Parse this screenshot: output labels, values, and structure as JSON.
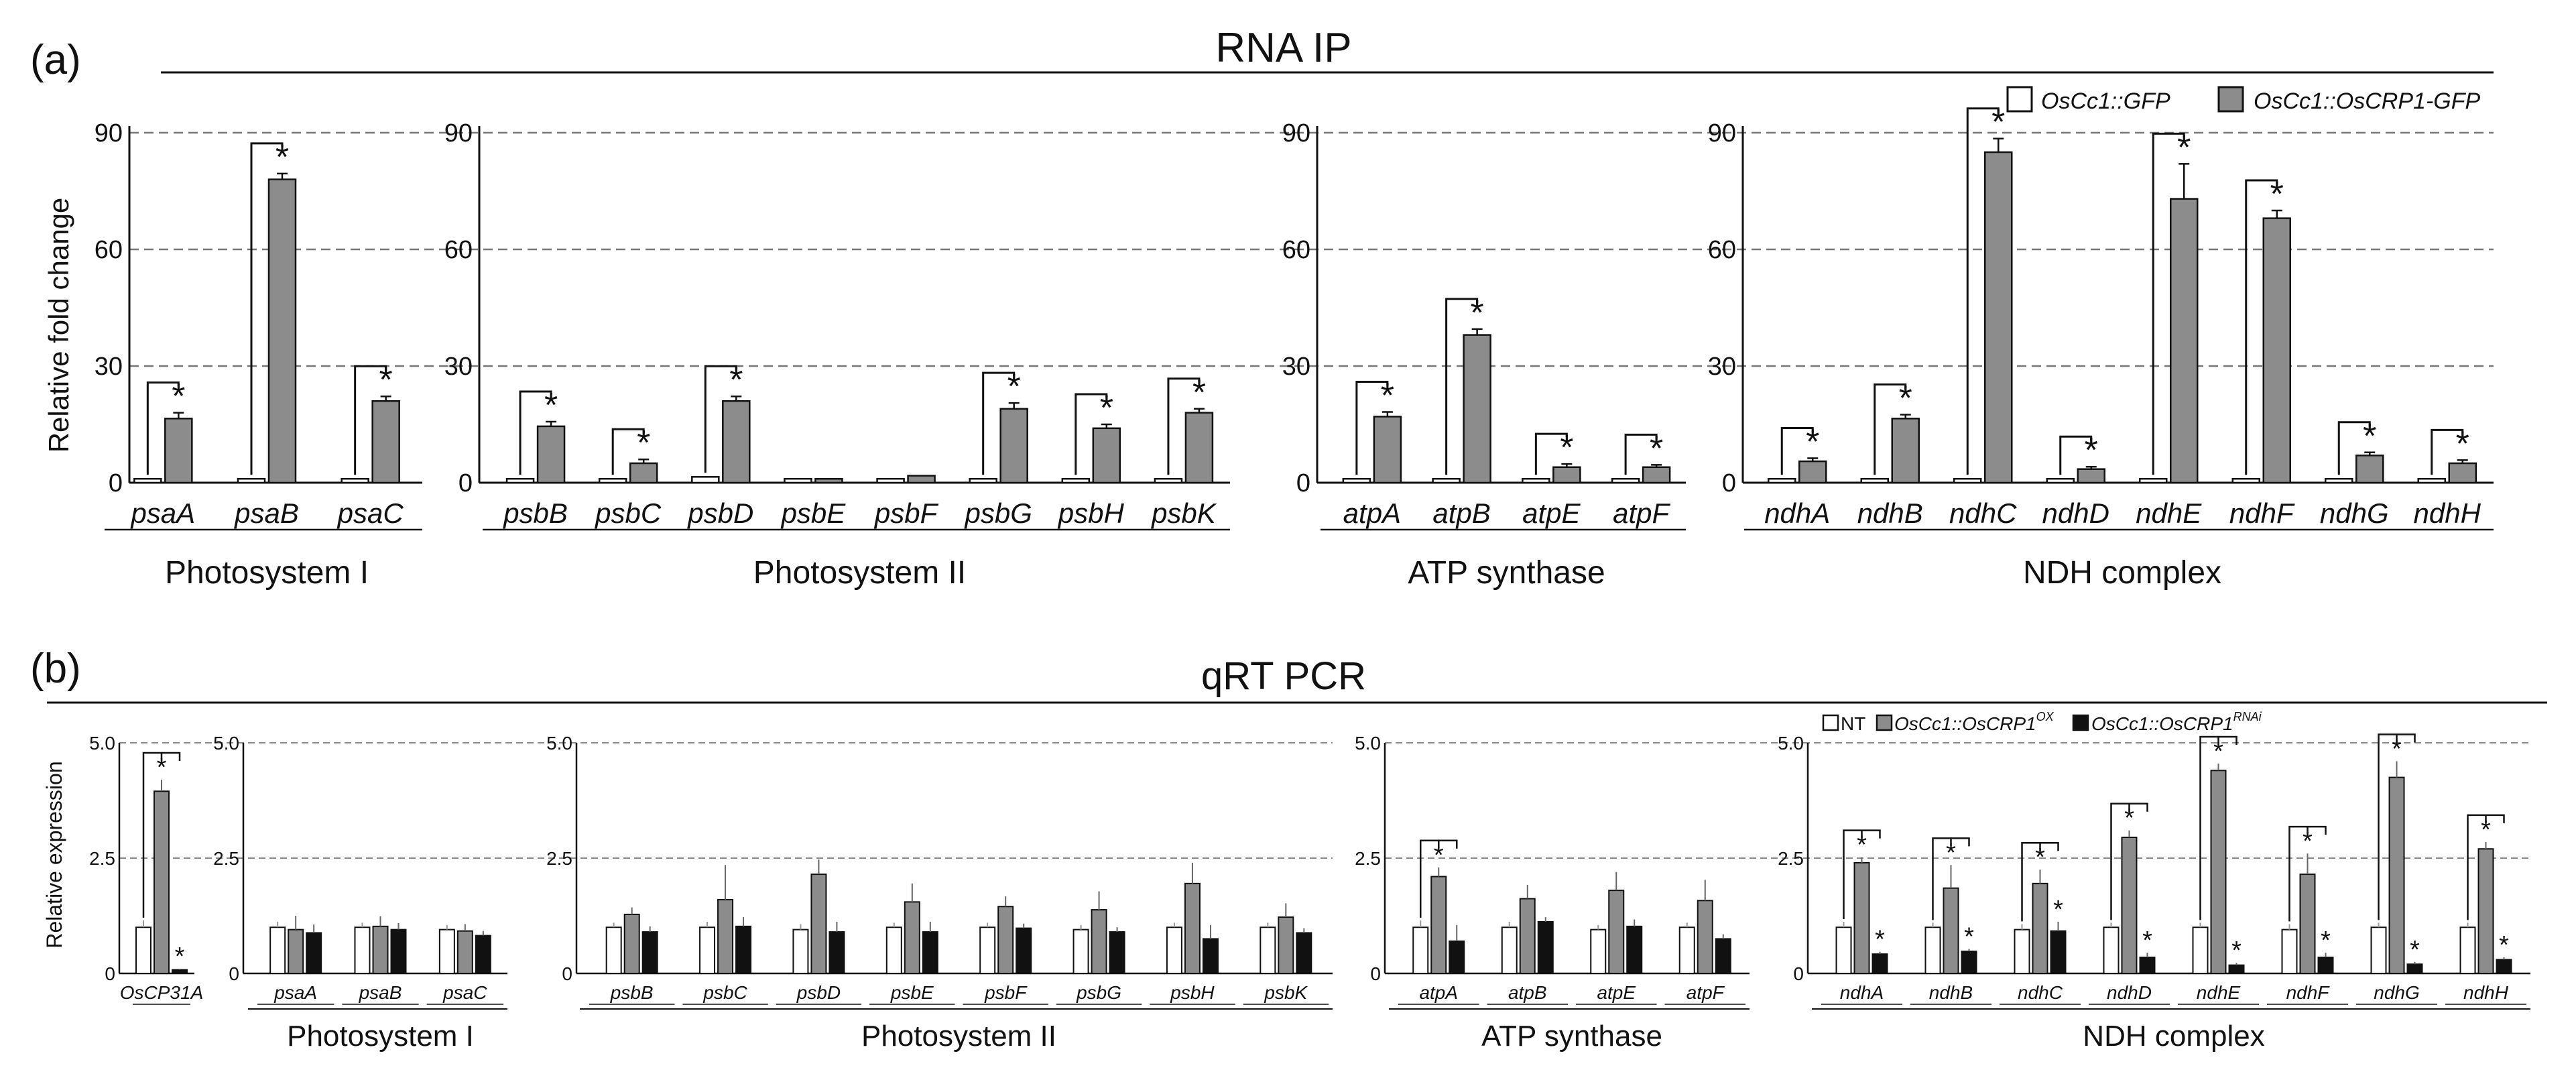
{
  "panel_a": {
    "label": "(a)",
    "title": "RNA IP",
    "ylabel": "Relative fold change",
    "legend": [
      "OsCc1::GFP",
      "OsCc1::OsCRP1-GFP"
    ],
    "star": "*"
  },
  "panel_b": {
    "label": "(b)",
    "title": "qRT PCR",
    "ylabel": "Relative expression",
    "legend": [
      {
        "prefix": "NT",
        "sup": ""
      },
      {
        "prefix": "OsCc1::OsCRP1",
        "sup": "OX"
      },
      {
        "prefix": "OsCc1::OsCRP1",
        "sup": "RNAi"
      }
    ],
    "star": "*"
  },
  "chart_data": [
    {
      "type": "bar",
      "title": "RNA IP",
      "ylabel": "Relative fold change",
      "ylim": [
        0,
        90
      ],
      "yticks": [
        "0",
        "30",
        "60",
        "90"
      ],
      "series_names": [
        "OsCc1::GFP",
        "OsCc1::OsCRP1-GFP"
      ],
      "colors": [
        "#ffffff",
        "#8c8c8c"
      ],
      "groups": [
        {
          "name": "Photosystem I",
          "genes": [
            "psaA",
            "psaB",
            "psaC"
          ],
          "values": [
            [
              1,
              16.5
            ],
            [
              1,
              78
            ],
            [
              1,
              21
            ]
          ],
          "errors": [
            [
              0,
              1.5
            ],
            [
              0,
              1.5
            ],
            [
              0,
              1.2
            ]
          ],
          "sig": [
            true,
            true,
            true
          ]
        },
        {
          "name": "Photosystem II",
          "genes": [
            "psbB",
            "psbC",
            "psbD",
            "psbE",
            "psbF",
            "psbG",
            "psbH",
            "psbK"
          ],
          "values": [
            [
              1,
              14.5
            ],
            [
              1,
              5
            ],
            [
              1.5,
              21
            ],
            [
              1,
              1
            ],
            [
              1,
              1.8
            ],
            [
              1,
              19
            ],
            [
              1,
              14
            ],
            [
              1,
              18
            ]
          ],
          "errors": [
            [
              0,
              1.2
            ],
            [
              0,
              1
            ],
            [
              0,
              1.2
            ],
            [
              0,
              0
            ],
            [
              0,
              0
            ],
            [
              0,
              1.5
            ],
            [
              0,
              1
            ],
            [
              0,
              1
            ]
          ],
          "sig": [
            true,
            true,
            true,
            false,
            false,
            true,
            true,
            true
          ]
        },
        {
          "name": "ATP synthase",
          "genes": [
            "atpA",
            "atpB",
            "atpE",
            "atpF"
          ],
          "values": [
            [
              1,
              17
            ],
            [
              1,
              38
            ],
            [
              1,
              4
            ],
            [
              1,
              4
            ]
          ],
          "errors": [
            [
              0,
              1.2
            ],
            [
              0,
              1.5
            ],
            [
              0,
              0.8
            ],
            [
              0,
              0.6
            ]
          ],
          "sig": [
            true,
            true,
            true,
            true
          ]
        },
        {
          "name": "NDH complex",
          "genes": [
            "ndhA",
            "ndhB",
            "ndhC",
            "ndhD",
            "ndhE",
            "ndhF",
            "ndhG",
            "ndhH"
          ],
          "values": [
            [
              1,
              5.5
            ],
            [
              1,
              16.5
            ],
            [
              1,
              85
            ],
            [
              1,
              3.5
            ],
            [
              1,
              73
            ],
            [
              1,
              68
            ],
            [
              1,
              7
            ],
            [
              1,
              5
            ]
          ],
          "errors": [
            [
              0,
              0.8
            ],
            [
              0,
              1
            ],
            [
              0,
              3.5
            ],
            [
              0,
              0.6
            ],
            [
              0,
              9
            ],
            [
              0,
              2
            ],
            [
              0,
              0.8
            ],
            [
              0,
              0.8
            ]
          ],
          "sig": [
            true,
            true,
            true,
            true,
            true,
            true,
            true,
            true
          ]
        }
      ]
    },
    {
      "type": "bar",
      "title": "qRT PCR",
      "ylabel": "Relative expression",
      "ylim": [
        0,
        5
      ],
      "yticks": [
        "0",
        "2.5",
        "5.0"
      ],
      "series_names": [
        "NT",
        "OsCc1::OsCRP1 OX",
        "OsCc1::OsCRP1 RNAi"
      ],
      "colors": [
        "#ffffff",
        "#8c8c8c",
        "#111111"
      ],
      "groups": [
        {
          "name": "",
          "genes": [
            "OsCP31A"
          ],
          "values": [
            [
              1,
              3.95,
              0.08
            ]
          ],
          "errors": [
            [
              0.15,
              0.25,
              0.02
            ]
          ],
          "sig": [
            true
          ]
        },
        {
          "name": "Photosystem I",
          "genes": [
            "psaA",
            "psaB",
            "psaC"
          ],
          "values": [
            [
              1,
              0.95,
              0.88
            ],
            [
              1,
              1.02,
              0.95
            ],
            [
              0.95,
              0.92,
              0.82
            ]
          ],
          "errors": [
            [
              0.12,
              0.3,
              0.18
            ],
            [
              0.1,
              0.22,
              0.14
            ],
            [
              0.1,
              0.15,
              0.1
            ]
          ],
          "sig": [
            false,
            false,
            false
          ]
        },
        {
          "name": "Photosystem II",
          "genes": [
            "psbB",
            "psbC",
            "psbD",
            "psbE",
            "psbF",
            "psbG",
            "psbH",
            "psbK"
          ],
          "values": [
            [
              1,
              1.28,
              0.9
            ],
            [
              1,
              1.6,
              1.02
            ],
            [
              0.95,
              2.15,
              0.9
            ],
            [
              1,
              1.55,
              0.9
            ],
            [
              1,
              1.45,
              0.98
            ],
            [
              0.95,
              1.38,
              0.9
            ],
            [
              1,
              1.95,
              0.75
            ],
            [
              1,
              1.22,
              0.88
            ]
          ],
          "errors": [
            [
              0.1,
              0.15,
              0.12
            ],
            [
              0.12,
              0.75,
              0.2
            ],
            [
              0.12,
              0.32,
              0.22
            ],
            [
              0.1,
              0.4,
              0.22
            ],
            [
              0.1,
              0.22,
              0.1
            ],
            [
              0.1,
              0.4,
              0.1
            ],
            [
              0.1,
              0.45,
              0.3
            ],
            [
              0.1,
              0.3,
              0.1
            ]
          ],
          "sig": [
            false,
            false,
            false,
            false,
            false,
            false,
            false,
            false
          ]
        },
        {
          "name": "ATP synthase",
          "genes": [
            "atpA",
            "atpB",
            "atpE",
            "atpF"
          ],
          "values": [
            [
              1,
              2.1,
              0.7
            ],
            [
              1,
              1.62,
              1.12
            ],
            [
              0.95,
              1.8,
              1.02
            ],
            [
              1,
              1.58,
              0.75
            ]
          ],
          "errors": [
            [
              0.15,
              0.2,
              0.35
            ],
            [
              0.12,
              0.3,
              0.1
            ],
            [
              0.1,
              0.4,
              0.15
            ],
            [
              0.1,
              0.45,
              0.1
            ]
          ],
          "sig": [
            true,
            false,
            false,
            false
          ]
        },
        {
          "name": "NDH complex",
          "genes": [
            "ndhA",
            "ndhB",
            "ndhC",
            "ndhD",
            "ndhE",
            "ndhF",
            "ndhG",
            "ndhH"
          ],
          "values": [
            [
              1,
              2.4,
              0.42
            ],
            [
              1,
              1.85,
              0.48
            ],
            [
              0.95,
              1.95,
              0.92
            ],
            [
              1,
              2.95,
              0.35
            ],
            [
              1,
              4.4,
              0.18
            ],
            [
              0.95,
              2.15,
              0.35
            ],
            [
              1,
              4.25,
              0.2
            ],
            [
              1,
              2.7,
              0.3
            ]
          ],
          "errors": [
            [
              0.12,
              0.12,
              0.05
            ],
            [
              0.1,
              0.5,
              0.05
            ],
            [
              0.12,
              0.3,
              0.2
            ],
            [
              0.1,
              0.15,
              0.1
            ],
            [
              0.1,
              0.15,
              0.05
            ],
            [
              0.12,
              0.45,
              0.1
            ],
            [
              0.1,
              0.35,
              0.05
            ],
            [
              0.1,
              0.15,
              0.05
            ]
          ],
          "sig": [
            true,
            true,
            true,
            true,
            true,
            true,
            true,
            true
          ]
        }
      ]
    }
  ]
}
